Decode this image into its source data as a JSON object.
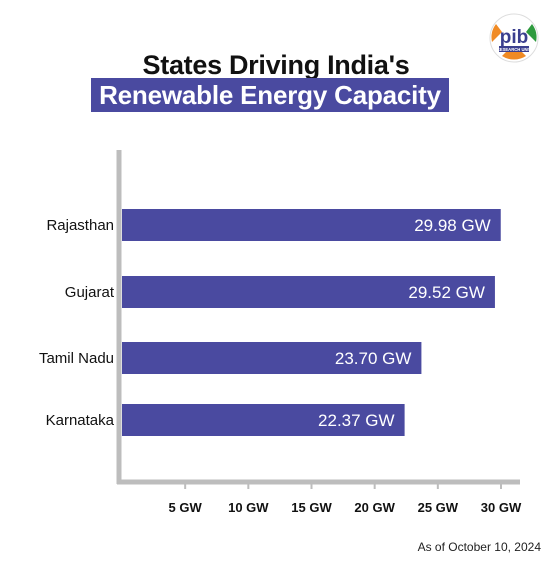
{
  "colors": {
    "bar": "#4a4aa0",
    "banner": "#4a4aa0",
    "axis": "#bdbdbd",
    "title": "#111111",
    "logo_saffron": "#f08a24",
    "logo_green": "#2e9a3e",
    "logo_blue": "#3b3f8f"
  },
  "logo": {
    "text": "pib",
    "subtext": "RESEARCH UNIT"
  },
  "footnote": "As of October 10, 2024",
  "chart_data": {
    "type": "bar",
    "orientation": "horizontal",
    "title": "States Driving India's",
    "subtitle": "Renewable Energy Capacity",
    "categories": [
      "Rajasthan",
      "Gujarat",
      "Tamil Nadu",
      "Karnataka"
    ],
    "values": [
      29.98,
      29.52,
      23.7,
      22.37
    ],
    "data_labels": [
      "29.98 GW",
      "29.52 GW",
      "23.70 GW",
      "22.37 GW"
    ],
    "unit": "GW",
    "xticks": [
      5,
      10,
      15,
      20,
      25,
      30
    ],
    "xtick_labels": [
      "5 GW",
      "10 GW",
      "15 GW",
      "20 GW",
      "25 GW",
      "30 GW"
    ],
    "xlim": [
      0,
      30
    ],
    "grid": false
  }
}
